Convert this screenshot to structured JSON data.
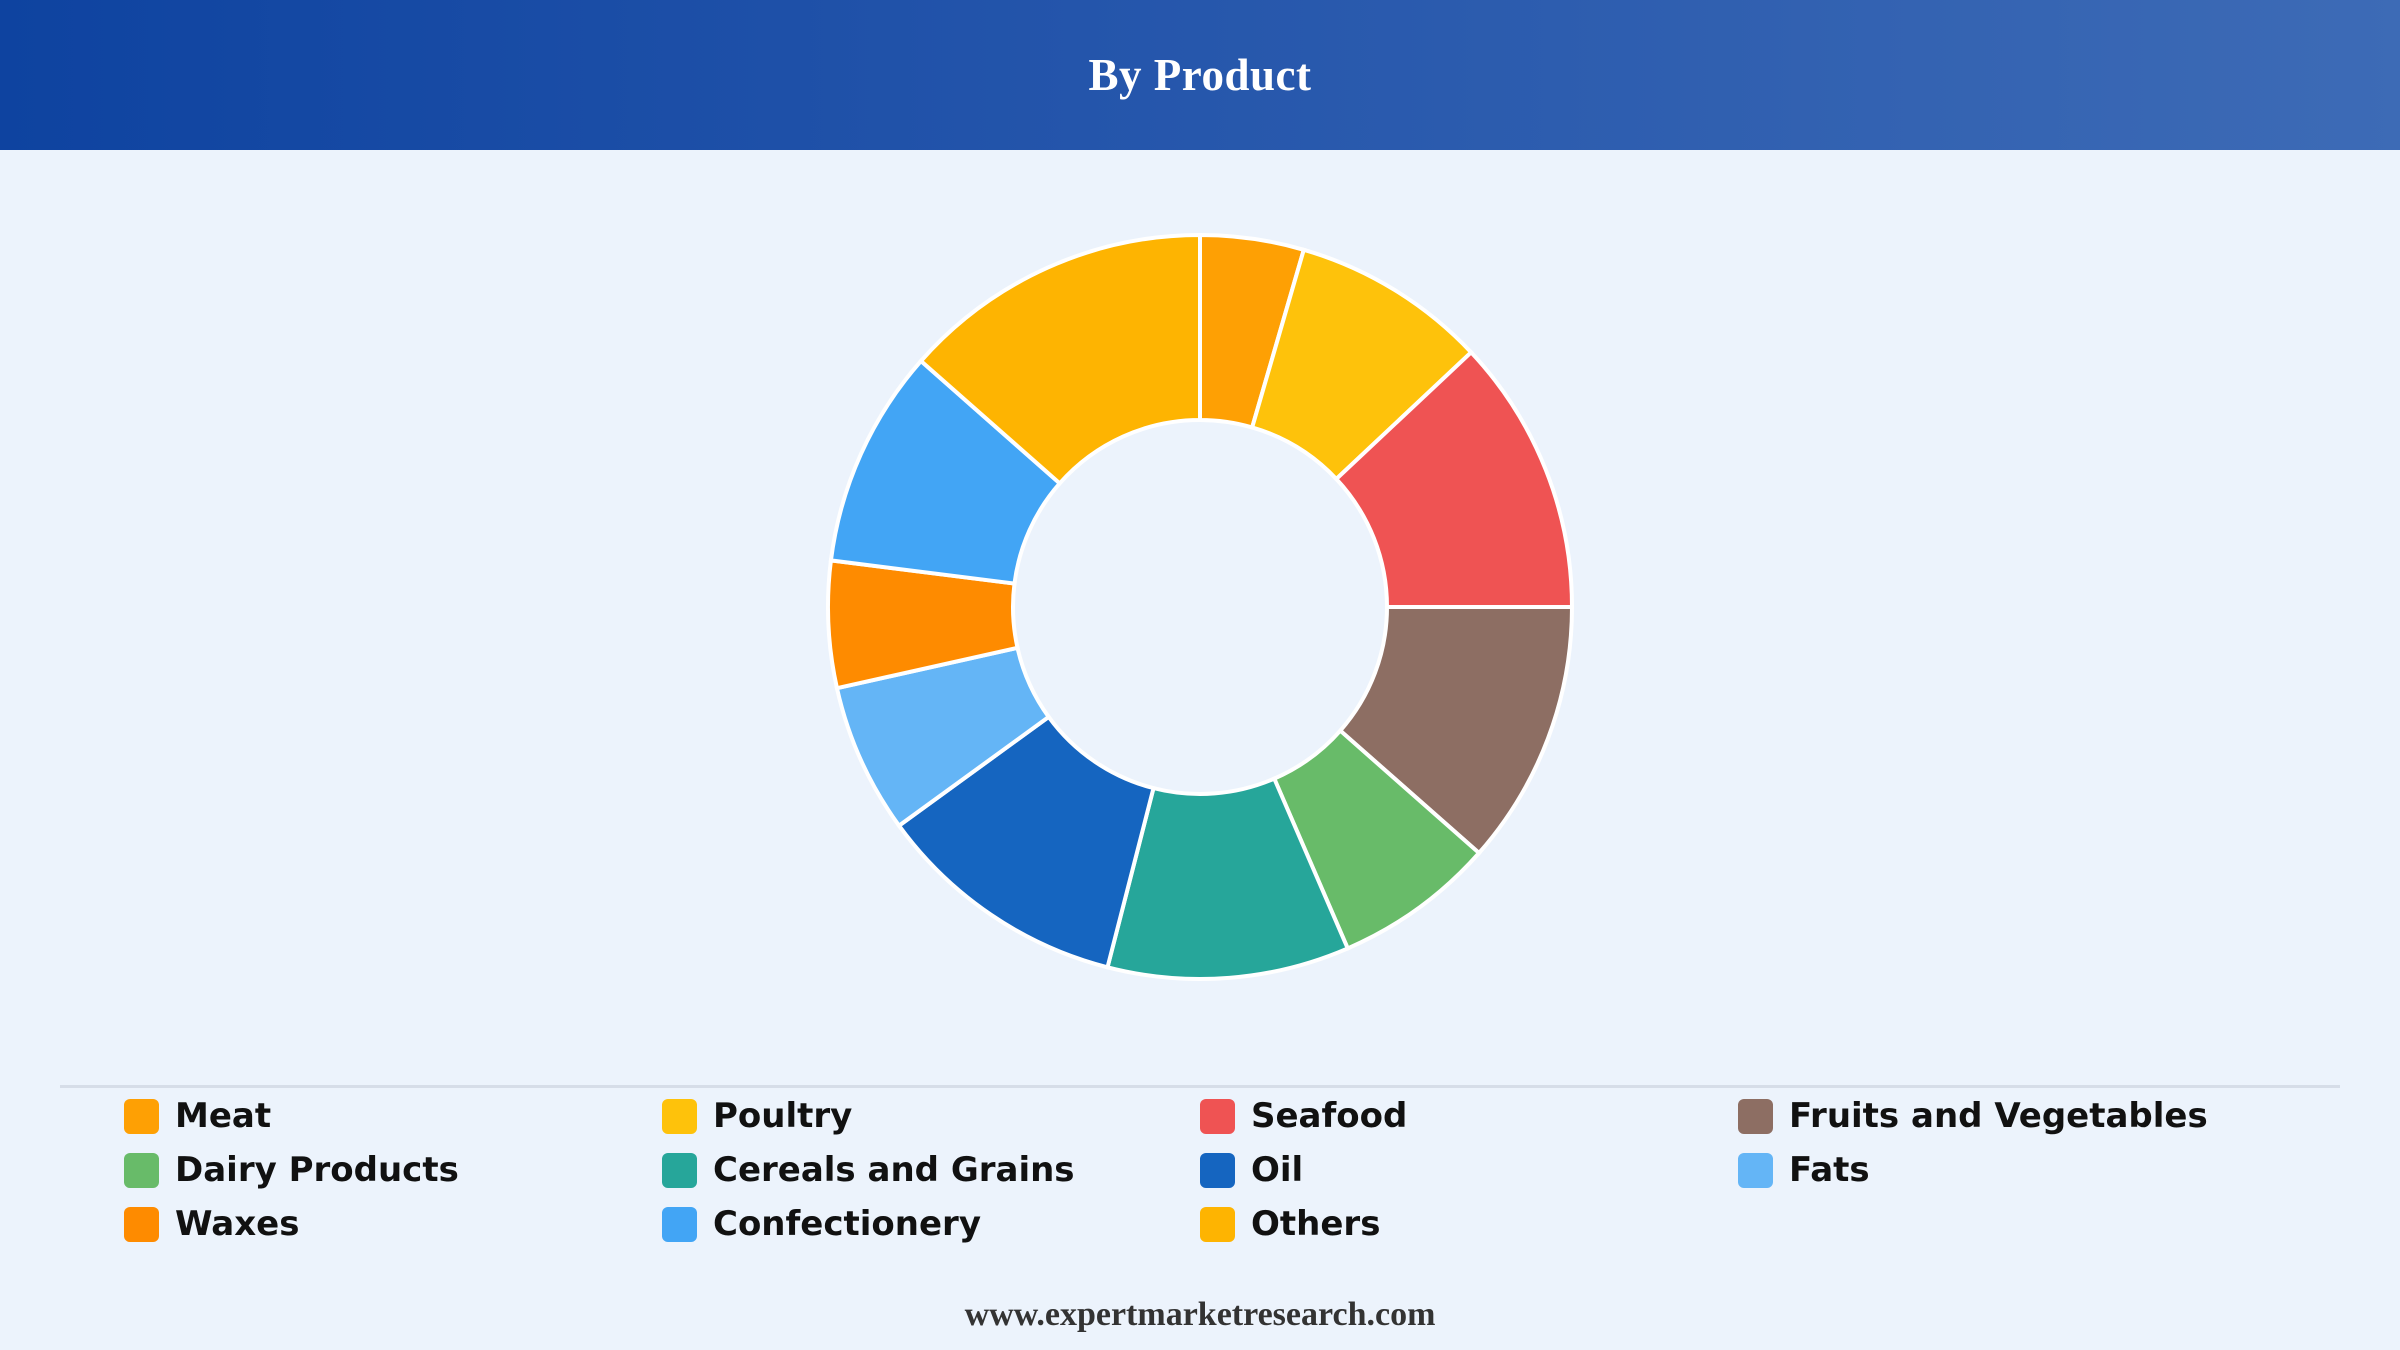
{
  "header": {
    "title": "By Product"
  },
  "chart_data": {
    "type": "pie",
    "style": "donut",
    "legend_position": "bottom",
    "categories": [
      "Meat",
      "Poultry",
      "Seafood",
      "Fruits and Vegetables",
      "Dairy Products",
      "Cereals and Grains",
      "Oil",
      "Fats",
      "Waxes",
      "Confectionery",
      "Others"
    ],
    "values": [
      4.5,
      8.5,
      12.0,
      11.5,
      7.0,
      10.5,
      11.0,
      6.5,
      5.5,
      9.5,
      13.5
    ],
    "colors": [
      "#fea004",
      "#fec20b",
      "#ef5353",
      "#8d6e63",
      "#68bb69",
      "#26a69a",
      "#1565c0",
      "#64b5f6",
      "#fe8b00",
      "#42a5f5",
      "#feb401"
    ]
  },
  "footer": {
    "website": "www.expertmarketresearch.com"
  }
}
